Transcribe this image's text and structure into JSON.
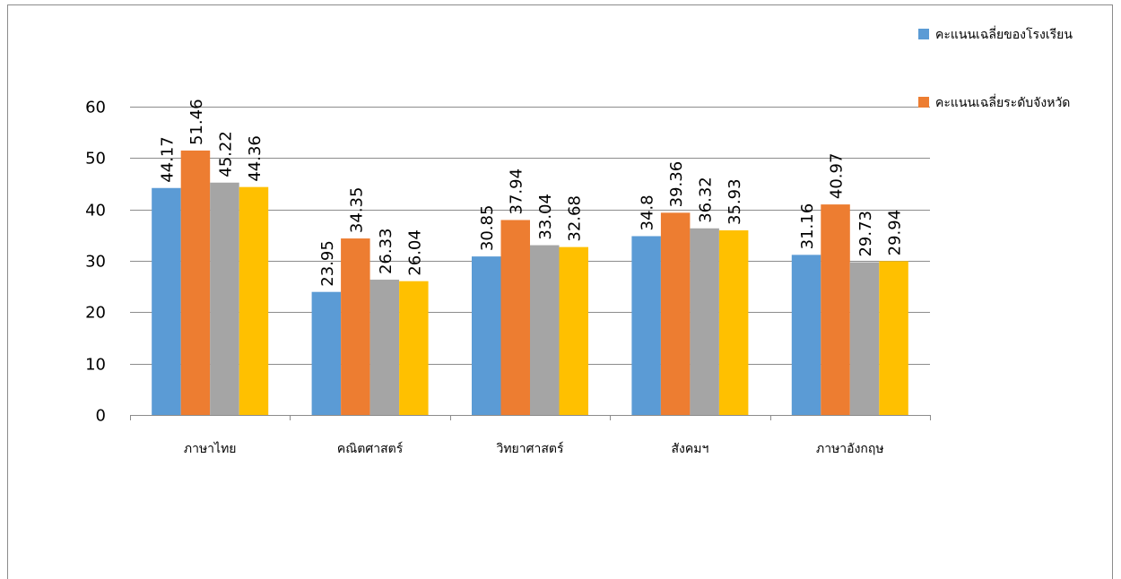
{
  "chart_data": {
    "type": "bar",
    "title": "",
    "xlabel": "",
    "ylabel": "",
    "ylim": [
      0,
      60
    ],
    "yticks": [
      0,
      10,
      20,
      30,
      40,
      50,
      60
    ],
    "grid": true,
    "legend_position": "top-right",
    "categories": [
      "ภาษาไทย",
      "คณิตศาสตร์",
      "วิทยาศาสตร์",
      "สังคมฯ",
      "ภาษาอังกฤษ"
    ],
    "series": [
      {
        "name": "คะแนนเฉลี่ยของโรงเรียน",
        "color": "#5B9BD5",
        "values": [
          44.17,
          23.95,
          30.85,
          34.8,
          31.16
        ],
        "labels": [
          "44.17",
          "23.95",
          "30.85",
          "34.8",
          "31.16"
        ]
      },
      {
        "name": "คะแนนเฉลี่ยระดับจังหวัด",
        "color": "#ED7D31",
        "values": [
          51.46,
          34.35,
          37.94,
          39.36,
          40.97
        ],
        "labels": [
          "51.46",
          "34.35",
          "37.94",
          "39.36",
          "40.97"
        ]
      },
      {
        "name": "",
        "color": "#A5A5A5",
        "values": [
          45.22,
          26.33,
          33.04,
          36.32,
          29.73
        ],
        "labels": [
          "45.22",
          "26.33",
          "33.04",
          "36.32",
          "29.73"
        ]
      },
      {
        "name": "",
        "color": "#FFC000",
        "values": [
          44.36,
          26.04,
          32.68,
          35.93,
          29.94
        ],
        "labels": [
          "44.36",
          "26.04",
          "32.68",
          "35.93",
          "29.94"
        ]
      }
    ]
  }
}
